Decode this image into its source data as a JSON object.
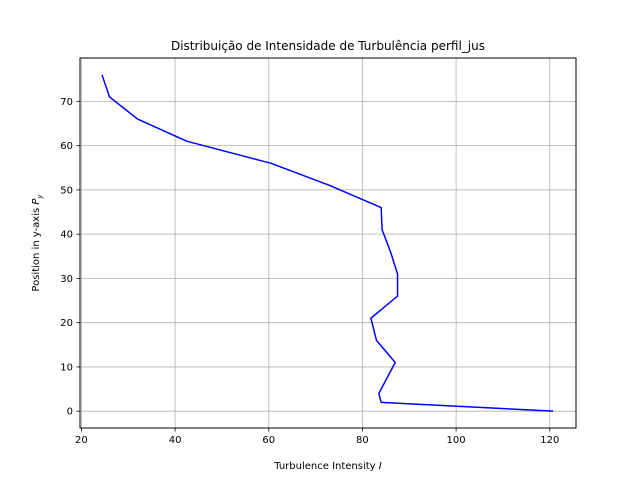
{
  "chart_data": {
    "type": "line",
    "title": "Distribuição de Intensidade de Turbulência perfil_jus",
    "xlabel": "Turbulence Intensity",
    "xlabel_var": "I",
    "ylabel": "Position in y-axis",
    "ylabel_var": "P",
    "ylabel_sub": "y",
    "xlim": [
      19.7,
      125.6
    ],
    "ylim": [
      -3.8,
      79.8
    ],
    "xticks": [
      20,
      40,
      60,
      80,
      100,
      120
    ],
    "yticks": [
      0,
      10,
      20,
      30,
      40,
      50,
      60,
      70
    ],
    "grid": true,
    "series": [
      {
        "color": "#0000ff",
        "x": [
          120.7,
          84.0,
          83.5,
          87.0,
          83.0,
          81.8,
          87.5,
          87.5,
          86.0,
          84.2,
          84.0,
          73.0,
          60.5,
          42.5,
          32.0,
          26.0,
          24.4
        ],
        "y": [
          0,
          2,
          4,
          11,
          16,
          21,
          26,
          31,
          36,
          41,
          46,
          51,
          56,
          61,
          66,
          71,
          76
        ]
      }
    ]
  }
}
